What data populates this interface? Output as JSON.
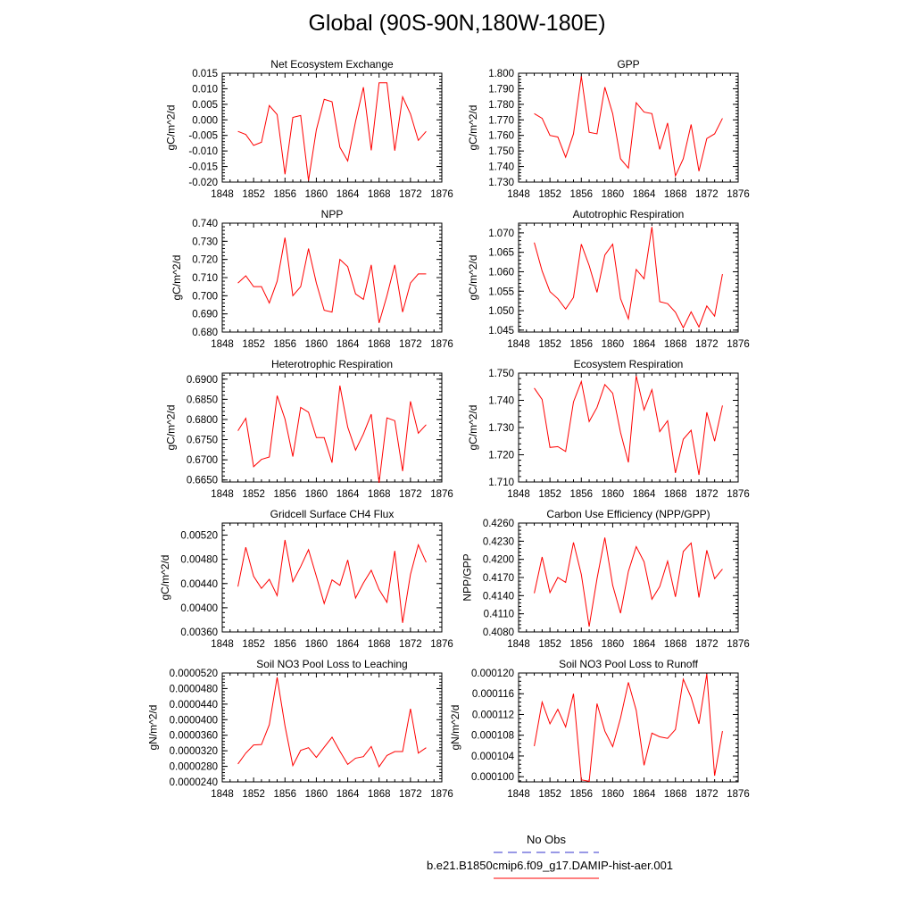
{
  "page_title": "Global (90S-90N,180W-180E)",
  "legend": {
    "items": [
      {
        "label": "No Obs",
        "color": "#3333cc",
        "style": "dashed"
      },
      {
        "label": "b.e21.B1850cmip6.f09_g17.DAMIP-hist-aer.001",
        "color": "#ff0000",
        "style": "solid"
      }
    ]
  },
  "chart_data": [
    {
      "type": "line",
      "title": "Net Ecosystem Exchange",
      "ylabel": "gC/m^2/d",
      "xlim": [
        1848,
        1876
      ],
      "xticks": [
        "1848",
        "1852",
        "1856",
        "1860",
        "1864",
        "1868",
        "1872",
        "1876"
      ],
      "ylim": [
        -0.02,
        0.015
      ],
      "yticks": [
        "-0.020",
        "-0.015",
        "-0.010",
        "-0.005",
        "0.000",
        "0.005",
        "0.010",
        "0.015"
      ],
      "x": [
        1850,
        1851,
        1852,
        1853,
        1854,
        1855,
        1856,
        1857,
        1858,
        1859,
        1860,
        1861,
        1862,
        1863,
        1864,
        1865,
        1866,
        1867,
        1868,
        1869,
        1870,
        1871,
        1872,
        1873,
        1874
      ],
      "series": [
        {
          "color": "#ff0000",
          "values": [
            -0.0037,
            -0.0047,
            -0.0082,
            -0.0072,
            0.0046,
            0.0017,
            -0.0175,
            0.0008,
            0.0014,
            -0.0195,
            -0.0032,
            0.0066,
            0.0058,
            -0.0088,
            -0.0132,
            -0.0005,
            0.0105,
            -0.0098,
            0.0119,
            0.0119,
            -0.0099,
            0.0074,
            0.0019,
            -0.0066,
            -0.0037
          ]
        }
      ]
    },
    {
      "type": "line",
      "title": "GPP",
      "ylabel": "gC/m^2/d",
      "xlim": [
        1848,
        1876
      ],
      "xticks": [
        "1848",
        "1852",
        "1856",
        "1860",
        "1864",
        "1868",
        "1872",
        "1876"
      ],
      "ylim": [
        1.73,
        1.8
      ],
      "yticks": [
        "1.730",
        "1.740",
        "1.750",
        "1.760",
        "1.770",
        "1.780",
        "1.790",
        "1.800"
      ],
      "x": [
        1850,
        1851,
        1852,
        1853,
        1854,
        1855,
        1856,
        1857,
        1858,
        1859,
        1860,
        1861,
        1862,
        1863,
        1864,
        1865,
        1866,
        1867,
        1868,
        1869,
        1870,
        1871,
        1872,
        1873,
        1874
      ],
      "series": [
        {
          "color": "#ff0000",
          "values": [
            1.774,
            1.771,
            1.76,
            1.759,
            1.746,
            1.761,
            1.798,
            1.762,
            1.761,
            1.791,
            1.774,
            1.745,
            1.739,
            1.781,
            1.775,
            1.774,
            1.751,
            1.768,
            1.734,
            1.745,
            1.767,
            1.737,
            1.758,
            1.761,
            1.771
          ]
        }
      ]
    },
    {
      "type": "line",
      "title": "NPP",
      "ylabel": "gC/m^2/d",
      "xlim": [
        1848,
        1876
      ],
      "xticks": [
        "1848",
        "1852",
        "1856",
        "1860",
        "1864",
        "1868",
        "1872",
        "1876"
      ],
      "ylim": [
        0.68,
        0.74
      ],
      "yticks": [
        "0.680",
        "0.690",
        "0.700",
        "0.710",
        "0.720",
        "0.730",
        "0.740"
      ],
      "x": [
        1850,
        1851,
        1852,
        1853,
        1854,
        1855,
        1856,
        1857,
        1858,
        1859,
        1860,
        1861,
        1862,
        1863,
        1864,
        1865,
        1866,
        1867,
        1868,
        1869,
        1870,
        1871,
        1872,
        1873,
        1874
      ],
      "series": [
        {
          "color": "#ff0000",
          "values": [
            0.707,
            0.711,
            0.705,
            0.705,
            0.696,
            0.708,
            0.732,
            0.7,
            0.705,
            0.726,
            0.707,
            0.692,
            0.691,
            0.72,
            0.716,
            0.701,
            0.698,
            0.717,
            0.685,
            0.7,
            0.717,
            0.691,
            0.707,
            0.712,
            0.712
          ]
        }
      ]
    },
    {
      "type": "line",
      "title": "Autotrophic Respiration",
      "ylabel": "gC/m^2/d",
      "xlim": [
        1848,
        1876
      ],
      "xticks": [
        "1848",
        "1852",
        "1856",
        "1860",
        "1864",
        "1868",
        "1872",
        "1876"
      ],
      "ylim": [
        1.0445,
        1.0725
      ],
      "yticks": [
        "1.045",
        "1.050",
        "1.055",
        "1.060",
        "1.065",
        "1.070"
      ],
      "x": [
        1850,
        1851,
        1852,
        1853,
        1854,
        1855,
        1856,
        1857,
        1858,
        1859,
        1860,
        1861,
        1862,
        1863,
        1864,
        1865,
        1866,
        1867,
        1868,
        1869,
        1870,
        1871,
        1872,
        1873,
        1874
      ],
      "series": [
        {
          "color": "#ff0000",
          "values": [
            1.0675,
            1.0602,
            1.0549,
            1.0531,
            1.0504,
            1.0534,
            1.0671,
            1.0616,
            1.0547,
            1.0643,
            1.0671,
            1.0531,
            1.0479,
            1.0606,
            1.0582,
            1.0715,
            1.0523,
            1.0518,
            1.0496,
            1.0456,
            1.0497,
            1.0458,
            1.0512,
            1.0486,
            1.0594
          ]
        }
      ]
    },
    {
      "type": "line",
      "title": "Heterotrophic Respiration",
      "ylabel": "gC/m^2/d",
      "xlim": [
        1848,
        1876
      ],
      "xticks": [
        "1848",
        "1852",
        "1856",
        "1860",
        "1864",
        "1868",
        "1872",
        "1876"
      ],
      "ylim": [
        0.6645,
        0.6915
      ],
      "yticks": [
        "0.6650",
        "0.6700",
        "0.6750",
        "0.6800",
        "0.6850",
        "0.6900"
      ],
      "x": [
        1850,
        1851,
        1852,
        1853,
        1854,
        1855,
        1856,
        1857,
        1858,
        1859,
        1860,
        1861,
        1862,
        1863,
        1864,
        1865,
        1866,
        1867,
        1868,
        1869,
        1870,
        1871,
        1872,
        1873,
        1874
      ],
      "series": [
        {
          "color": "#ff0000",
          "values": [
            0.6772,
            0.6803,
            0.6683,
            0.6701,
            0.6707,
            0.6859,
            0.6801,
            0.6708,
            0.683,
            0.6818,
            0.6755,
            0.6755,
            0.6693,
            0.6884,
            0.6781,
            0.6724,
            0.6764,
            0.6813,
            0.6643,
            0.6804,
            0.6797,
            0.6672,
            0.6845,
            0.6766,
            0.6787
          ]
        }
      ]
    },
    {
      "type": "line",
      "title": "Ecosystem Respiration",
      "ylabel": "gC/m^2/d",
      "xlim": [
        1848,
        1876
      ],
      "xticks": [
        "1848",
        "1852",
        "1856",
        "1860",
        "1864",
        "1868",
        "1872",
        "1876"
      ],
      "ylim": [
        1.71,
        1.75
      ],
      "yticks": [
        "1.710",
        "1.720",
        "1.730",
        "1.740",
        "1.750"
      ],
      "x": [
        1850,
        1851,
        1852,
        1853,
        1854,
        1855,
        1856,
        1857,
        1858,
        1859,
        1860,
        1861,
        1862,
        1863,
        1864,
        1865,
        1866,
        1867,
        1868,
        1869,
        1870,
        1871,
        1872,
        1873,
        1874
      ],
      "series": [
        {
          "color": "#ff0000",
          "values": [
            1.7445,
            1.7403,
            1.7227,
            1.723,
            1.7212,
            1.7394,
            1.7469,
            1.7322,
            1.7374,
            1.7458,
            1.7426,
            1.7282,
            1.7172,
            1.749,
            1.7365,
            1.7439,
            1.7285,
            1.7325,
            1.7133,
            1.7257,
            1.729,
            1.7126,
            1.7356,
            1.725,
            1.7381
          ]
        }
      ]
    },
    {
      "type": "line",
      "title": "Gridcell Surface CH4 Flux",
      "ylabel": "gC/m^2/d",
      "xlim": [
        1848,
        1876
      ],
      "xticks": [
        "1848",
        "1852",
        "1856",
        "1860",
        "1864",
        "1868",
        "1872",
        "1876"
      ],
      "ylim": [
        0.0036,
        0.0054
      ],
      "yticks": [
        "0.00360",
        "0.00400",
        "0.00440",
        "0.00480",
        "0.00520"
      ],
      "x": [
        1850,
        1851,
        1852,
        1853,
        1854,
        1855,
        1856,
        1857,
        1858,
        1859,
        1860,
        1861,
        1862,
        1863,
        1864,
        1865,
        1866,
        1867,
        1868,
        1869,
        1870,
        1871,
        1872,
        1873,
        1874
      ],
      "series": [
        {
          "color": "#ff0000",
          "values": [
            0.00435,
            0.005,
            0.00452,
            0.00432,
            0.00447,
            0.0042,
            0.00512,
            0.00443,
            0.00468,
            0.00496,
            0.00452,
            0.00407,
            0.00446,
            0.00437,
            0.00479,
            0.00416,
            0.00441,
            0.00462,
            0.0043,
            0.00409,
            0.00494,
            0.00375,
            0.00455,
            0.00504,
            0.00475
          ]
        }
      ]
    },
    {
      "type": "line",
      "title": "Carbon Use Efficiency (NPP/GPP)",
      "ylabel": "NPP/GPP",
      "xlim": [
        1848,
        1876
      ],
      "xticks": [
        "1848",
        "1852",
        "1856",
        "1860",
        "1864",
        "1868",
        "1872",
        "1876"
      ],
      "ylim": [
        0.408,
        0.426
      ],
      "yticks": [
        "0.4080",
        "0.4110",
        "0.4140",
        "0.4170",
        "0.4200",
        "0.4230",
        "0.4260"
      ],
      "x": [
        1850,
        1851,
        1852,
        1853,
        1854,
        1855,
        1856,
        1857,
        1858,
        1859,
        1860,
        1861,
        1862,
        1863,
        1864,
        1865,
        1866,
        1867,
        1868,
        1869,
        1870,
        1871,
        1872,
        1873,
        1874
      ],
      "series": [
        {
          "color": "#ff0000",
          "values": [
            0.4144,
            0.4204,
            0.4145,
            0.417,
            0.4162,
            0.4228,
            0.4175,
            0.4089,
            0.4168,
            0.4236,
            0.4157,
            0.4111,
            0.418,
            0.4221,
            0.4196,
            0.4134,
            0.4155,
            0.4197,
            0.4138,
            0.4213,
            0.4227,
            0.4137,
            0.4215,
            0.4168,
            0.4184
          ]
        }
      ]
    },
    {
      "type": "line",
      "title": "Soil NO3 Pool Loss to Leaching",
      "ylabel": "gN/m^2/d",
      "xlim": [
        1848,
        1876
      ],
      "xticks": [
        "1848",
        "1852",
        "1856",
        "1860",
        "1864",
        "1868",
        "1872",
        "1876"
      ],
      "ylim": [
        2.4e-05,
        5.2e-05
      ],
      "yticks": [
        "0.0000240",
        "0.0000280",
        "0.0000320",
        "0.0000360",
        "0.0000400",
        "0.0000440",
        "0.0000480",
        "0.0000520"
      ],
      "x": [
        1850,
        1851,
        1852,
        1853,
        1854,
        1855,
        1856,
        1857,
        1858,
        1859,
        1860,
        1861,
        1862,
        1863,
        1864,
        1865,
        1866,
        1867,
        1868,
        1869,
        1870,
        1871,
        1872,
        1873,
        1874
      ],
      "series": [
        {
          "color": "#ff0000",
          "values": [
            2.86e-05,
            3.14e-05,
            3.35e-05,
            3.36e-05,
            3.87e-05,
            5.09e-05,
            3.84e-05,
            2.82e-05,
            3.21e-05,
            3.28e-05,
            3.03e-05,
            3.29e-05,
            3.55e-05,
            3.19e-05,
            2.85e-05,
            3.01e-05,
            3.05e-05,
            3.31e-05,
            2.79e-05,
            3.08e-05,
            3.18e-05,
            3.18e-05,
            4.28e-05,
            3.14e-05,
            3.28e-05
          ]
        }
      ]
    },
    {
      "type": "line",
      "title": "Soil NO3 Pool Loss to Runoff",
      "ylabel": "gN/m^2/d",
      "xlim": [
        1848,
        1876
      ],
      "xticks": [
        "1848",
        "1852",
        "1856",
        "1860",
        "1864",
        "1868",
        "1872",
        "1876"
      ],
      "ylim": [
        9.9e-05,
        0.00012
      ],
      "yticks": [
        "0.000100",
        "0.000104",
        "0.000108",
        "0.000112",
        "0.000116",
        "0.000120"
      ],
      "x": [
        1850,
        1851,
        1852,
        1853,
        1854,
        1855,
        1856,
        1857,
        1858,
        1859,
        1860,
        1861,
        1862,
        1863,
        1864,
        1865,
        1866,
        1867,
        1868,
        1869,
        1870,
        1871,
        1872,
        1873,
        1874
      ],
      "series": [
        {
          "color": "#ff0000",
          "values": [
            0.0001059,
            0.0001144,
            0.0001102,
            0.000113,
            0.0001096,
            0.000116,
            9.94e-05,
            9.91e-05,
            0.0001141,
            0.0001088,
            0.0001058,
            0.0001113,
            0.0001182,
            0.0001128,
            0.0001022,
            0.0001084,
            0.0001077,
            0.0001074,
            0.0001091,
            0.0001188,
            0.0001153,
            0.0001102,
            0.0001198,
            0.0001002,
            0.0001088
          ]
        }
      ]
    }
  ]
}
